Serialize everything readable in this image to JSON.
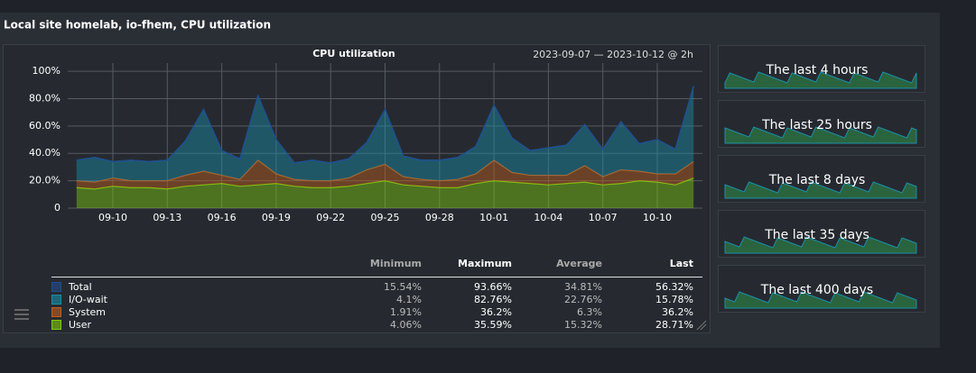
{
  "header": {
    "title": "Local site homelab, io-fhem, CPU utilization"
  },
  "chart_data": {
    "type": "area",
    "title": "CPU utilization",
    "subtitle": "2023-09-07 — 2023-10-12 @ 2h",
    "x": [
      "09-08",
      "09-09",
      "09-10",
      "09-11",
      "09-12",
      "09-13",
      "09-14",
      "09-15",
      "09-16",
      "09-17",
      "09-18",
      "09-19",
      "09-20",
      "09-21",
      "09-22",
      "09-23",
      "09-24",
      "09-25",
      "09-26",
      "09-27",
      "09-28",
      "09-29",
      "09-30",
      "10-01",
      "10-02",
      "10-03",
      "10-04",
      "10-05",
      "10-06",
      "10-07",
      "10-08",
      "10-09",
      "10-10",
      "10-11",
      "10-12"
    ],
    "xticks": [
      "09-10",
      "09-13",
      "09-16",
      "09-19",
      "09-22",
      "09-25",
      "09-28",
      "10-01",
      "10-04",
      "10-07",
      "10-10"
    ],
    "ylim": [
      0,
      106
    ],
    "yticks": [
      0,
      {
        "value": 20,
        "label": "20.0%"
      },
      {
        "value": 40,
        "label": "40.0%"
      },
      {
        "value": 60,
        "label": "60.0%"
      },
      {
        "value": 80,
        "label": "80.0%"
      },
      {
        "value": 100,
        "label": "100%"
      }
    ],
    "grid": true,
    "series": [
      {
        "name": "Total",
        "kind": "line",
        "color": "#1f4f8f",
        "values": [
          35,
          37,
          34,
          35,
          34,
          35,
          49,
          72,
          42,
          36,
          82,
          50,
          33,
          35,
          33,
          36,
          48,
          72,
          38,
          35,
          35,
          37,
          45,
          75,
          51,
          42,
          44,
          46,
          61,
          43,
          63,
          47,
          50,
          43,
          89
        ]
      },
      {
        "name": "I/O-wait",
        "kind": "area",
        "color": "#1b8fa8",
        "values": [
          15,
          18,
          12,
          15,
          14,
          15,
          25,
          45,
          18,
          15,
          47,
          25,
          12,
          15,
          13,
          14,
          20,
          40,
          15,
          14,
          15,
          16,
          20,
          40,
          25,
          18,
          20,
          22,
          30,
          20,
          35,
          20,
          25,
          18,
          55
        ]
      },
      {
        "name": "System",
        "kind": "area",
        "color": "#c0601c",
        "values": [
          5,
          5,
          6,
          5,
          5,
          6,
          8,
          10,
          6,
          5,
          18,
          7,
          5,
          5,
          5,
          6,
          10,
          12,
          6,
          5,
          5,
          6,
          7,
          15,
          7,
          6,
          7,
          6,
          12,
          6,
          10,
          7,
          6,
          8,
          12
        ]
      },
      {
        "name": "User",
        "kind": "area",
        "color": "#7fcc10",
        "values": [
          15,
          14,
          16,
          15,
          15,
          14,
          16,
          17,
          18,
          16,
          17,
          18,
          16,
          15,
          15,
          16,
          18,
          20,
          17,
          16,
          15,
          15,
          18,
          20,
          19,
          18,
          17,
          18,
          19,
          17,
          18,
          20,
          19,
          17,
          22
        ]
      }
    ],
    "legend_table": {
      "columns": [
        "Minimum",
        "Maximum",
        "Average",
        "Last"
      ],
      "rows": [
        [
          "15.54%",
          "93.66%",
          "34.81%",
          "56.32%"
        ],
        [
          "4.1%",
          "82.76%",
          "22.76%",
          "15.78%"
        ],
        [
          "1.91%",
          "36.2%",
          "6.3%",
          "36.2%"
        ],
        [
          "4.06%",
          "35.59%",
          "15.32%",
          "28.71%"
        ]
      ]
    }
  },
  "thumbnails": [
    "The last 4 hours",
    "The last 25 hours",
    "The last 8 days",
    "The last 35 days",
    "The last 400 days"
  ]
}
